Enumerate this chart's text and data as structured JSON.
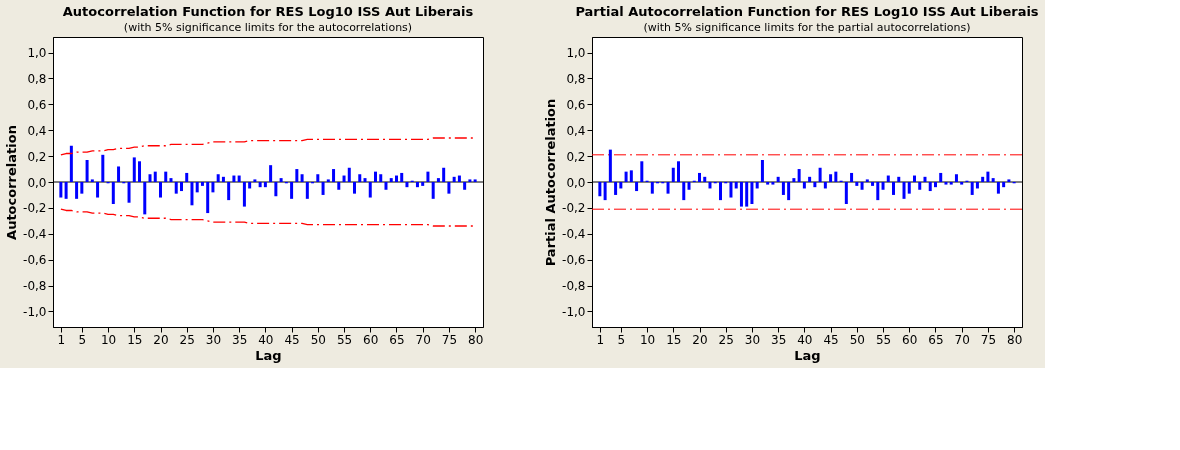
{
  "chart_data": [
    {
      "type": "bar",
      "title": "Autocorrelation Function for RES Log10 ISS Aut Liberais",
      "subtitle": "(with 5% significance limits for the autocorrelations)",
      "xlabel": "Lag",
      "ylabel": "Autocorrelation",
      "grid": false,
      "x": [
        1,
        2,
        3,
        4,
        5,
        6,
        7,
        8,
        9,
        10,
        11,
        12,
        13,
        14,
        15,
        16,
        17,
        18,
        19,
        20,
        21,
        22,
        23,
        24,
        25,
        26,
        27,
        28,
        29,
        30,
        31,
        32,
        33,
        34,
        35,
        36,
        37,
        38,
        39,
        40,
        41,
        42,
        43,
        44,
        45,
        46,
        47,
        48,
        49,
        50,
        51,
        52,
        53,
        54,
        55,
        56,
        57,
        58,
        59,
        60,
        61,
        62,
        63,
        64,
        65,
        66,
        67,
        68,
        69,
        70,
        71,
        72,
        73,
        74,
        75,
        76,
        77,
        78,
        79,
        80
      ],
      "xlim": [
        -0.5,
        81.5
      ],
      "xticks": [
        1,
        5,
        10,
        15,
        20,
        25,
        30,
        35,
        40,
        45,
        50,
        55,
        60,
        65,
        70,
        75,
        80
      ],
      "ylim": [
        -1.12,
        1.12
      ],
      "yticks": [
        {
          "value": -1.0,
          "label": "-1,0"
        },
        {
          "value": -0.8,
          "label": "-0,8"
        },
        {
          "value": -0.6,
          "label": "-0,6"
        },
        {
          "value": -0.4,
          "label": "-0,4"
        },
        {
          "value": -0.2,
          "label": "-0,2"
        },
        {
          "value": 0.0,
          "label": "0,0"
        },
        {
          "value": 0.2,
          "label": "0,2"
        },
        {
          "value": 0.4,
          "label": "0,4"
        },
        {
          "value": 0.6,
          "label": "0,6"
        },
        {
          "value": 0.8,
          "label": "0,8"
        },
        {
          "value": 1.0,
          "label": "1,0"
        }
      ],
      "series": [
        {
          "color": "#0000ff",
          "values": [
            -0.12,
            -0.13,
            0.28,
            -0.13,
            -0.09,
            0.17,
            0.02,
            -0.12,
            0.21,
            -0.01,
            -0.17,
            0.12,
            -0.01,
            -0.16,
            0.19,
            0.16,
            -0.25,
            0.06,
            0.08,
            -0.12,
            0.08,
            0.03,
            -0.09,
            -0.07,
            0.07,
            -0.18,
            -0.08,
            -0.03,
            -0.24,
            -0.08,
            0.06,
            0.04,
            -0.14,
            0.05,
            0.05,
            -0.19,
            -0.05,
            0.02,
            -0.04,
            -0.04,
            0.13,
            -0.11,
            0.03,
            -0.01,
            -0.13,
            0.1,
            0.06,
            -0.13,
            -0.01,
            0.06,
            -0.1,
            0.02,
            0.1,
            -0.06,
            0.05,
            0.11,
            -0.09,
            0.06,
            0.03,
            -0.12,
            0.08,
            0.06,
            -0.06,
            0.03,
            0.05,
            0.07,
            -0.04,
            0.01,
            -0.04,
            -0.03,
            0.08,
            -0.13,
            0.03,
            0.11,
            -0.09,
            0.04,
            0.05,
            -0.06,
            0.02,
            0.02
          ]
        },
        {
          "type": "line",
          "color": "#ff0000",
          "line_style": "dashed",
          "values": [
            0.21,
            0.22,
            0.22,
            0.23,
            0.23,
            0.23,
            0.24,
            0.24,
            0.24,
            0.25,
            0.25,
            0.26,
            0.26,
            0.26,
            0.27,
            0.27,
            0.28,
            0.28,
            0.28,
            0.28,
            0.28,
            0.29,
            0.29,
            0.29,
            0.29,
            0.29,
            0.29,
            0.29,
            0.3,
            0.31,
            0.31,
            0.31,
            0.31,
            0.31,
            0.31,
            0.31,
            0.32,
            0.32,
            0.32,
            0.32,
            0.32,
            0.32,
            0.32,
            0.32,
            0.32,
            0.32,
            0.32,
            0.33,
            0.33,
            0.33,
            0.33,
            0.33,
            0.33,
            0.33,
            0.33,
            0.33,
            0.33,
            0.33,
            0.33,
            0.33,
            0.33,
            0.33,
            0.33,
            0.33,
            0.33,
            0.33,
            0.33,
            0.33,
            0.33,
            0.33,
            0.33,
            0.34,
            0.34,
            0.34,
            0.34,
            0.34,
            0.34,
            0.34,
            0.34,
            0.34
          ]
        },
        {
          "type": "line",
          "color": "#ff0000",
          "line_style": "dashed",
          "values": [
            -0.21,
            -0.22,
            -0.22,
            -0.23,
            -0.23,
            -0.23,
            -0.24,
            -0.24,
            -0.24,
            -0.25,
            -0.25,
            -0.26,
            -0.26,
            -0.26,
            -0.27,
            -0.27,
            -0.28,
            -0.28,
            -0.28,
            -0.28,
            -0.28,
            -0.29,
            -0.29,
            -0.29,
            -0.29,
            -0.29,
            -0.29,
            -0.29,
            -0.3,
            -0.31,
            -0.31,
            -0.31,
            -0.31,
            -0.31,
            -0.31,
            -0.31,
            -0.32,
            -0.32,
            -0.32,
            -0.32,
            -0.32,
            -0.32,
            -0.32,
            -0.32,
            -0.32,
            -0.32,
            -0.32,
            -0.33,
            -0.33,
            -0.33,
            -0.33,
            -0.33,
            -0.33,
            -0.33,
            -0.33,
            -0.33,
            -0.33,
            -0.33,
            -0.33,
            -0.33,
            -0.33,
            -0.33,
            -0.33,
            -0.33,
            -0.33,
            -0.33,
            -0.33,
            -0.33,
            -0.33,
            -0.33,
            -0.33,
            -0.34,
            -0.34,
            -0.34,
            -0.34,
            -0.34,
            -0.34,
            -0.34,
            -0.34,
            -0.34
          ]
        }
      ],
      "ref_lines": [
        {
          "axis": "y",
          "value": 0.0,
          "color": "#000000",
          "line_style": "solid"
        }
      ]
    },
    {
      "type": "bar",
      "title": "Partial Autocorrelation Function for RES Log10 ISS Aut Liberais",
      "subtitle": "(with 5% significance limits for the partial autocorrelations)",
      "xlabel": "Lag",
      "ylabel": "Partial Autocorrelation",
      "grid": false,
      "x": [
        1,
        2,
        3,
        4,
        5,
        6,
        7,
        8,
        9,
        10,
        11,
        12,
        13,
        14,
        15,
        16,
        17,
        18,
        19,
        20,
        21,
        22,
        23,
        24,
        25,
        26,
        27,
        28,
        29,
        30,
        31,
        32,
        33,
        34,
        35,
        36,
        37,
        38,
        39,
        40,
        41,
        42,
        43,
        44,
        45,
        46,
        47,
        48,
        49,
        50,
        51,
        52,
        53,
        54,
        55,
        56,
        57,
        58,
        59,
        60,
        61,
        62,
        63,
        64,
        65,
        66,
        67,
        68,
        69,
        70,
        71,
        72,
        73,
        74,
        75,
        76,
        77,
        78,
        79,
        80
      ],
      "xlim": [
        -0.5,
        81.5
      ],
      "xticks": [
        1,
        5,
        10,
        15,
        20,
        25,
        30,
        35,
        40,
        45,
        50,
        55,
        60,
        65,
        70,
        75,
        80
      ],
      "ylim": [
        -1.12,
        1.12
      ],
      "yticks": [
        {
          "value": -1.0,
          "label": "-1,0"
        },
        {
          "value": -0.8,
          "label": "-0,8"
        },
        {
          "value": -0.6,
          "label": "-0,6"
        },
        {
          "value": -0.4,
          "label": "-0,4"
        },
        {
          "value": -0.2,
          "label": "-0,2"
        },
        {
          "value": 0.0,
          "label": "0,0"
        },
        {
          "value": 0.2,
          "label": "0,2"
        },
        {
          "value": 0.4,
          "label": "0,4"
        },
        {
          "value": 0.6,
          "label": "0,6"
        },
        {
          "value": 0.8,
          "label": "0,8"
        },
        {
          "value": 1.0,
          "label": "1,0"
        }
      ],
      "series": [
        {
          "color": "#0000ff",
          "values": [
            -0.11,
            -0.14,
            0.25,
            -0.1,
            -0.05,
            0.08,
            0.09,
            -0.07,
            0.16,
            0.01,
            -0.09,
            -0.01,
            -0.01,
            -0.09,
            0.11,
            0.16,
            -0.14,
            -0.06,
            0.01,
            0.07,
            0.04,
            -0.05,
            -0.01,
            -0.14,
            -0.01,
            -0.12,
            -0.05,
            -0.19,
            -0.19,
            -0.17,
            -0.05,
            0.17,
            -0.02,
            -0.02,
            0.04,
            -0.1,
            -0.14,
            0.03,
            0.1,
            -0.05,
            0.04,
            -0.04,
            0.11,
            -0.05,
            0.06,
            0.08,
            0.01,
            -0.17,
            0.07,
            -0.03,
            -0.06,
            0.02,
            -0.03,
            -0.14,
            -0.06,
            0.05,
            -0.1,
            0.04,
            -0.13,
            -0.09,
            0.05,
            -0.06,
            0.04,
            -0.07,
            -0.04,
            0.07,
            -0.02,
            -0.02,
            0.06,
            -0.02,
            0.01,
            -0.1,
            -0.05,
            0.04,
            0.08,
            0.03,
            -0.09,
            -0.04,
            0.02,
            -0.01
          ]
        }
      ],
      "ref_lines": [
        {
          "axis": "y",
          "value": 0.0,
          "color": "#000000",
          "line_style": "solid"
        },
        {
          "axis": "y",
          "value": 0.21,
          "color": "#ff0000",
          "line_style": "dashed"
        },
        {
          "axis": "y",
          "value": -0.21,
          "color": "#ff0000",
          "line_style": "dashed"
        }
      ]
    }
  ]
}
